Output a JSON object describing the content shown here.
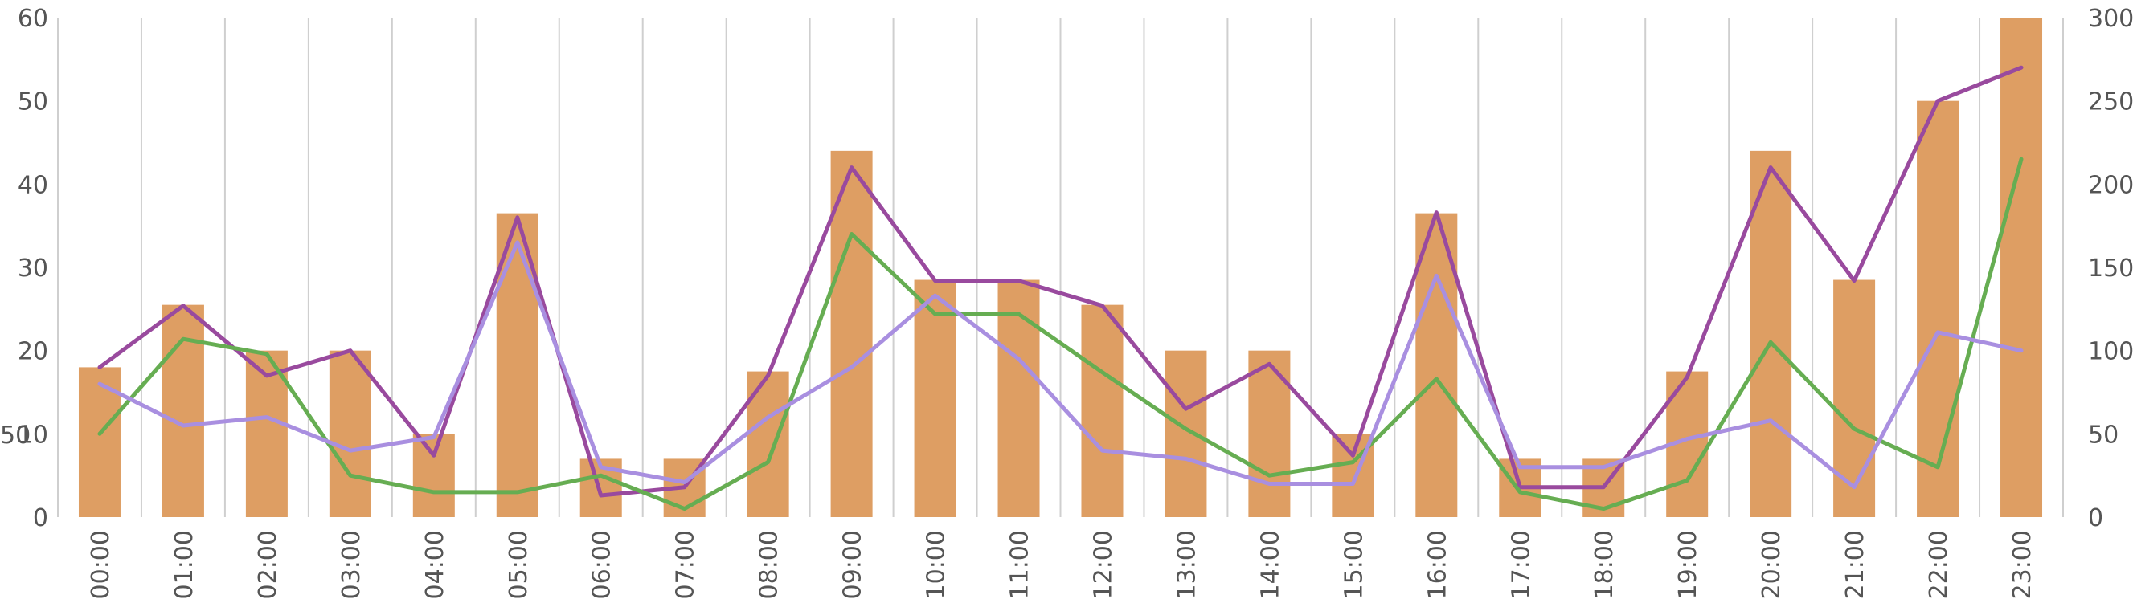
{
  "chart_data": {
    "type": "bar",
    "categories": [
      "00:00",
      "01:00",
      "02:00",
      "03:00",
      "04:00",
      "05:00",
      "06:00",
      "07:00",
      "08:00",
      "09:00",
      "10:00",
      "11:00",
      "12:00",
      "13:00",
      "14:00",
      "15:00",
      "16:00",
      "17:00",
      "18:00",
      "19:00",
      "20:00",
      "21:00",
      "22:00",
      "23:00"
    ],
    "series": [
      {
        "kind": "bar",
        "axis": "left",
        "color": "#DE9E63",
        "values": [
          18,
          25.5,
          20,
          20,
          10,
          36.5,
          7,
          7,
          17.5,
          44,
          28.5,
          28.5,
          25.5,
          20,
          20,
          10,
          36.5,
          7,
          7,
          17.5,
          44,
          28.5,
          50,
          60
        ]
      },
      {
        "kind": "line",
        "axis": "right",
        "color": "#994A9E",
        "values": [
          90,
          127,
          85,
          100,
          37,
          180,
          13,
          18,
          85,
          210,
          142,
          142,
          127,
          65,
          92,
          37,
          183,
          18,
          18,
          84,
          210,
          142,
          250,
          270
        ]
      },
      {
        "kind": "line",
        "axis": "right",
        "color": "#66AD52",
        "values": [
          50,
          107,
          98,
          25,
          15,
          15,
          25,
          5,
          33,
          170,
          122,
          122,
          87,
          53,
          25,
          33,
          83,
          15,
          5,
          22,
          105,
          53,
          30,
          215
        ]
      },
      {
        "kind": "line",
        "axis": "right",
        "color": "#A98FE0",
        "values": [
          80,
          55,
          60,
          40,
          48,
          165,
          30,
          21,
          60,
          90,
          133,
          95,
          40,
          35,
          20,
          20,
          145,
          30,
          30,
          47,
          58,
          18,
          111,
          100
        ]
      }
    ],
    "y_left": {
      "min": 0,
      "max": 60,
      "ticks": [
        "0",
        "10",
        "20",
        "30",
        "40",
        "50",
        "60"
      ]
    },
    "y_right": {
      "min": 0,
      "max": 300,
      "ticks": [
        "0",
        "50",
        "100",
        "150",
        "200",
        "250",
        "300"
      ]
    },
    "stray_label": "50",
    "grid": {
      "vertical": true,
      "horizontal": false
    }
  }
}
